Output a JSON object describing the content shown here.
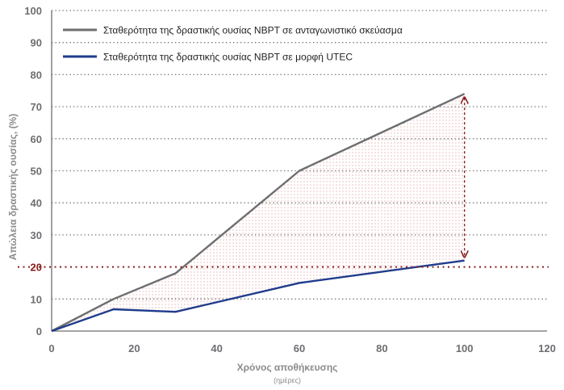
{
  "chart_data": {
    "type": "line",
    "xlabel": "Χρόνος αποθήκευσης",
    "xlabel_sub": "(ημέρες)",
    "ylabel": "Απώλεια δραστικής ουσίας, (%)",
    "xlim": [
      0,
      120
    ],
    "ylim": [
      0,
      100
    ],
    "x_ticks": [
      0,
      20,
      40,
      60,
      80,
      100,
      120
    ],
    "y_ticks": [
      0,
      10,
      20,
      30,
      40,
      50,
      60,
      70,
      80,
      90,
      100
    ],
    "grid": "horizontal-dotted",
    "legend_position": "top-left",
    "reference_line": {
      "y": 20,
      "style": "dotted",
      "color": "#8a1c1c"
    },
    "shaded_region": "between-series",
    "difference_arrow_x": 100,
    "series": [
      {
        "name": "Σταθερότητα της δραστικής ουσίας NBPT σε ανταγωνιστικό σκεύασμα",
        "color": "#6d6e71",
        "x": [
          0,
          15,
          30,
          60,
          100
        ],
        "y": [
          0,
          10,
          18,
          50,
          74
        ]
      },
      {
        "name": "Σταθερότητα της δραστικής ουσίας NBPT σε μορφή UTEC",
        "color": "#1f3c8c",
        "x": [
          0,
          15,
          30,
          60,
          100
        ],
        "y": [
          0,
          6.8,
          6,
          15,
          22
        ]
      }
    ]
  }
}
